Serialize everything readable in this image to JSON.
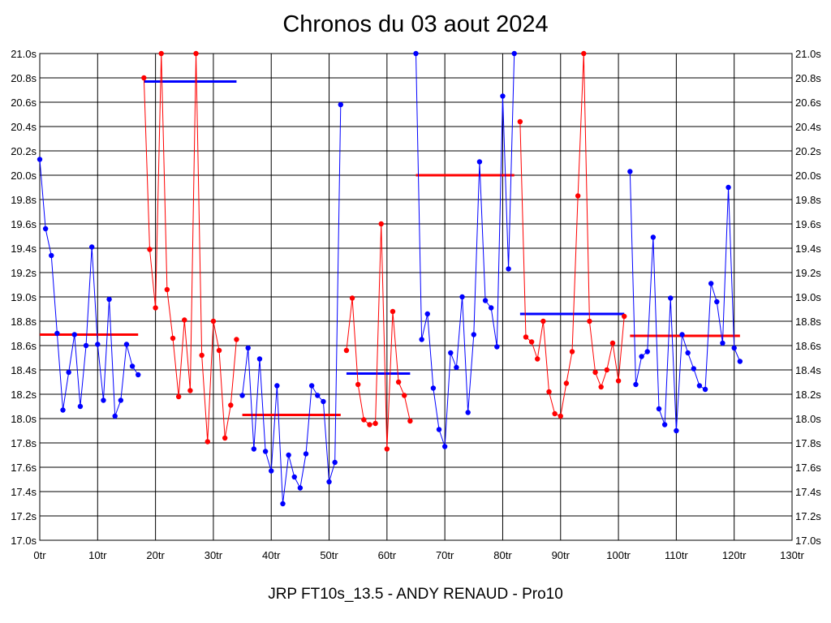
{
  "chart_data": {
    "type": "line",
    "title": "Chronos du 03 aout 2024",
    "footer": "JRP FT10s_13.5 - ANDY RENAUD - Pro10",
    "xlabel": "",
    "ylabel": "",
    "xlim": [
      0,
      130
    ],
    "ylim": [
      17.0,
      21.0
    ],
    "grid": true,
    "x_ticks": [
      0,
      10,
      20,
      30,
      40,
      50,
      60,
      70,
      80,
      90,
      100,
      110,
      120,
      130
    ],
    "x_tick_labels": [
      "0tr",
      "10tr",
      "20tr",
      "30tr",
      "40tr",
      "50tr",
      "60tr",
      "70tr",
      "80tr",
      "90tr",
      "100tr",
      "110tr",
      "120tr",
      "130tr"
    ],
    "y_ticks": [
      17.0,
      17.2,
      17.4,
      17.6,
      17.8,
      18.0,
      18.2,
      18.4,
      18.6,
      18.8,
      19.0,
      19.2,
      19.4,
      19.6,
      19.8,
      20.0,
      20.2,
      20.4,
      20.6,
      20.8,
      21.0
    ],
    "y_tick_labels": [
      "17.0s",
      "17.2s",
      "17.4s",
      "17.6s",
      "17.8s",
      "18.0s",
      "18.2s",
      "18.4s",
      "18.6s",
      "18.8s",
      "19.0s",
      "19.2s",
      "19.4s",
      "19.6s",
      "19.8s",
      "20.0s",
      "20.2s",
      "20.4s",
      "20.6s",
      "20.8s",
      "21.0s"
    ],
    "colors": {
      "blue": "#0000ff",
      "red": "#ff0000",
      "grid": "#000000"
    },
    "series": [
      {
        "color": "#0000ff",
        "x": [
          0,
          1,
          2,
          3,
          4,
          5,
          6,
          7,
          8,
          9,
          10,
          11,
          12,
          13,
          14,
          15,
          16,
          17
        ],
        "y": [
          20.13,
          19.56,
          19.34,
          18.7,
          18.07,
          18.38,
          18.69,
          18.1,
          18.6,
          19.41,
          18.61,
          18.15,
          18.98,
          18.02,
          18.15,
          18.61,
          18.43,
          18.36
        ]
      },
      {
        "color": "#ff0000",
        "x": [
          18,
          19,
          20,
          21,
          22,
          23,
          24,
          25,
          26,
          27,
          28,
          29,
          30,
          31,
          32,
          33,
          34
        ],
        "y": [
          20.8,
          19.39,
          18.91,
          21.0,
          19.06,
          18.66,
          18.18,
          18.81,
          18.23,
          21.0,
          18.52,
          17.81,
          18.8,
          18.56,
          17.84,
          18.11,
          18.65
        ]
      },
      {
        "color": "#0000ff",
        "x": [
          35,
          36,
          37,
          38,
          39,
          40,
          41,
          42,
          43,
          44,
          45,
          46,
          47,
          48,
          49,
          50,
          51,
          52
        ],
        "y": [
          18.19,
          18.58,
          17.75,
          18.49,
          17.73,
          17.57,
          18.27,
          17.3,
          17.7,
          17.52,
          17.43,
          17.71,
          18.27,
          18.19,
          18.14,
          17.48,
          17.64,
          20.58
        ]
      },
      {
        "color": "#ff0000",
        "x": [
          53,
          54,
          55,
          56,
          57,
          58,
          59,
          60,
          61,
          62,
          63,
          64
        ],
        "y": [
          18.56,
          18.99,
          18.28,
          17.99,
          17.95,
          17.96,
          19.6,
          17.75,
          18.88,
          18.3,
          18.19,
          17.98
        ]
      },
      {
        "color": "#0000ff",
        "x": [
          65,
          66,
          67,
          68,
          69,
          70,
          71,
          72,
          73,
          74,
          75,
          76,
          77,
          78,
          79,
          80,
          81,
          82
        ],
        "y": [
          21.0,
          18.65,
          18.86,
          18.25,
          17.91,
          17.77,
          18.54,
          18.42,
          19.0,
          18.05,
          18.69,
          20.11,
          18.97,
          18.91,
          18.59,
          20.65,
          19.23,
          21.0
        ]
      },
      {
        "color": "#ff0000",
        "x": [
          83,
          84,
          85,
          86,
          87,
          88,
          89,
          90,
          91,
          92,
          93,
          94,
          95,
          96,
          97,
          98,
          99,
          100,
          101
        ],
        "y": [
          20.44,
          18.67,
          18.63,
          18.49,
          18.8,
          18.22,
          18.04,
          18.02,
          18.29,
          18.55,
          19.83,
          21.0,
          18.8,
          18.38,
          18.26,
          18.4,
          18.62,
          18.31,
          18.84
        ]
      },
      {
        "color": "#0000ff",
        "x": [
          102,
          103,
          104,
          105,
          106,
          107,
          108,
          109,
          110,
          111,
          112,
          113,
          114,
          115,
          116,
          117,
          118,
          119,
          120,
          121
        ],
        "y": [
          20.03,
          18.28,
          18.51,
          18.55,
          19.49,
          18.08,
          17.95,
          18.99,
          17.9,
          18.69,
          18.54,
          18.41,
          18.27,
          18.24,
          19.11,
          18.96,
          18.62,
          19.9,
          18.58,
          18.47
        ]
      }
    ],
    "averages": [
      {
        "color": "#ff0000",
        "x": [
          0,
          17
        ],
        "y": 18.69
      },
      {
        "color": "#0000ff",
        "x": [
          18,
          34
        ],
        "y": 20.77
      },
      {
        "color": "#ff0000",
        "x": [
          35,
          52
        ],
        "y": 18.03
      },
      {
        "color": "#0000ff",
        "x": [
          53,
          64
        ],
        "y": 18.37
      },
      {
        "color": "#ff0000",
        "x": [
          65,
          82
        ],
        "y": 20.0
      },
      {
        "color": "#0000ff",
        "x": [
          83,
          101
        ],
        "y": 18.86
      },
      {
        "color": "#ff0000",
        "x": [
          102,
          121
        ],
        "y": 18.68
      }
    ]
  }
}
